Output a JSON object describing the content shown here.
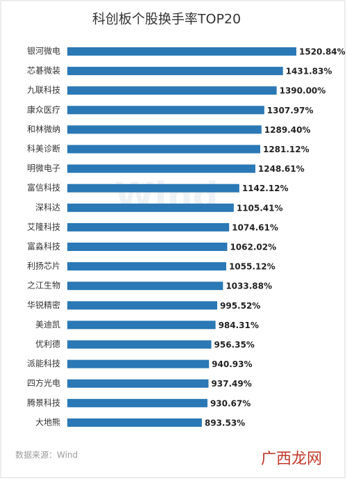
{
  "chart_data": {
    "type": "bar",
    "orientation": "horizontal",
    "title": "科创板个股换手率TOP20",
    "categories": [
      "银河微电",
      "芯碁微装",
      "九联科技",
      "康众医疗",
      "和林微纳",
      "科美诊断",
      "明微电子",
      "富信科技",
      "深科达",
      "艾隆科技",
      "富淼科技",
      "利扬芯片",
      "之江生物",
      "华锐精密",
      "美迪凯",
      "优利德",
      "派能科技",
      "四方光电",
      "腾景科技",
      "大地熊"
    ],
    "values": [
      1520.84,
      1431.83,
      1390.0,
      1307.97,
      1289.4,
      1281.12,
      1248.61,
      1142.12,
      1105.41,
      1074.61,
      1062.02,
      1055.12,
      1033.88,
      995.52,
      984.31,
      956.35,
      940.93,
      937.49,
      930.67,
      893.53
    ],
    "value_labels": [
      "1520.84%",
      "1431.83%",
      "1390.00%",
      "1307.97%",
      "1289.40%",
      "1281.12%",
      "1248.61%",
      "1142.12%",
      "1105.41%",
      "1074.61%",
      "1062.02%",
      "1055.12%",
      "1033.88%",
      "995.52%",
      "984.31%",
      "956.35%",
      "940.93%",
      "937.49%",
      "930.67%",
      "893.53%"
    ],
    "color": "#2a78b5",
    "source": "数据来源：Wind",
    "watermark": "Wind",
    "logo": "广西龙网"
  }
}
